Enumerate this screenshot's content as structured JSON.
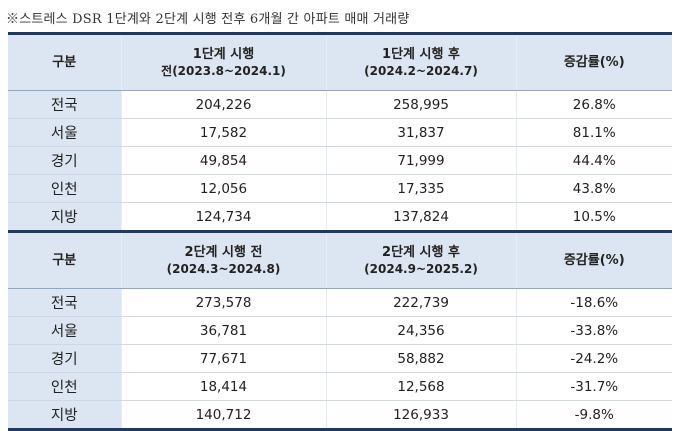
{
  "caption": "※스트레스 DSR 1단계와 2단계 시행 전후 6개월 간 아파트 매매 거래량",
  "section1": {
    "headers": [
      {
        "l1": "구분",
        "l2": ""
      },
      {
        "l1": "1단계 시행",
        "l2": "전(2023.8~2024.1)"
      },
      {
        "l1": "1단계 시행 후",
        "l2": "(2024.2~2024.7)"
      },
      {
        "l1": "증감률(%)",
        "l2": ""
      }
    ],
    "rows": [
      {
        "region": "전국",
        "before": "204,226",
        "after": "258,995",
        "change": "26.8%"
      },
      {
        "region": "서울",
        "before": "17,582",
        "after": "31,837",
        "change": "81.1%"
      },
      {
        "region": "경기",
        "before": "49,854",
        "after": "71,999",
        "change": "44.4%"
      },
      {
        "region": "인천",
        "before": "12,056",
        "after": "17,335",
        "change": "43.8%"
      },
      {
        "region": "지방",
        "before": "124,734",
        "after": "137,824",
        "change": "10.5%"
      }
    ]
  },
  "section2": {
    "headers": [
      {
        "l1": "구분",
        "l2": ""
      },
      {
        "l1": "2단계 시행 전",
        "l2": "(2024.3~2024.8)"
      },
      {
        "l1": "2단계 시행 후",
        "l2": "(2024.9~2025.2)"
      },
      {
        "l1": "증감률(%)",
        "l2": ""
      }
    ],
    "rows": [
      {
        "region": "전국",
        "before": "273,578",
        "after": "222,739",
        "change": "-18.6%"
      },
      {
        "region": "서울",
        "before": "36,781",
        "after": "24,356",
        "change": "-33.8%"
      },
      {
        "region": "경기",
        "before": "77,671",
        "after": "58,882",
        "change": "-24.2%"
      },
      {
        "region": "인천",
        "before": "18,414",
        "after": "12,568",
        "change": "-31.7%"
      },
      {
        "region": "지방",
        "before": "140,712",
        "after": "126,933",
        "change": "-9.8%"
      }
    ]
  }
}
